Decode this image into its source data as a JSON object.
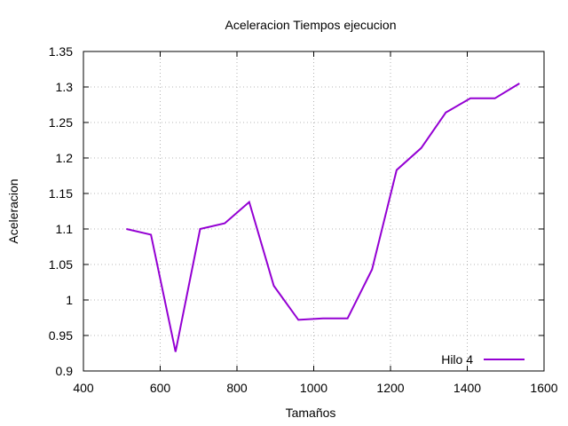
{
  "chart_data": {
    "type": "line",
    "title": "Aceleracion Tiempos ejecucion",
    "xlabel": "Tamaños",
    "ylabel": "Aceleracion",
    "xlim": [
      400,
      1600
    ],
    "ylim": [
      0.9,
      1.35
    ],
    "xticks": [
      400,
      600,
      800,
      1000,
      1200,
      1400,
      1600
    ],
    "yticks": [
      0.9,
      0.95,
      1,
      1.05,
      1.1,
      1.15,
      1.2,
      1.25,
      1.3,
      1.35
    ],
    "grid": true,
    "legend_position": "bottom-right",
    "series": [
      {
        "name": "Hilo 4",
        "color": "#9400d3",
        "x": [
          512,
          576,
          640,
          704,
          768,
          832,
          896,
          960,
          1024,
          1088,
          1152,
          1216,
          1280,
          1344,
          1408,
          1472,
          1536
        ],
        "y": [
          1.1,
          1.092,
          0.927,
          1.1,
          1.108,
          1.138,
          1.02,
          0.972,
          0.974,
          0.974,
          1.043,
          1.183,
          1.214,
          1.264,
          1.284,
          1.284,
          1.305
        ]
      }
    ]
  }
}
